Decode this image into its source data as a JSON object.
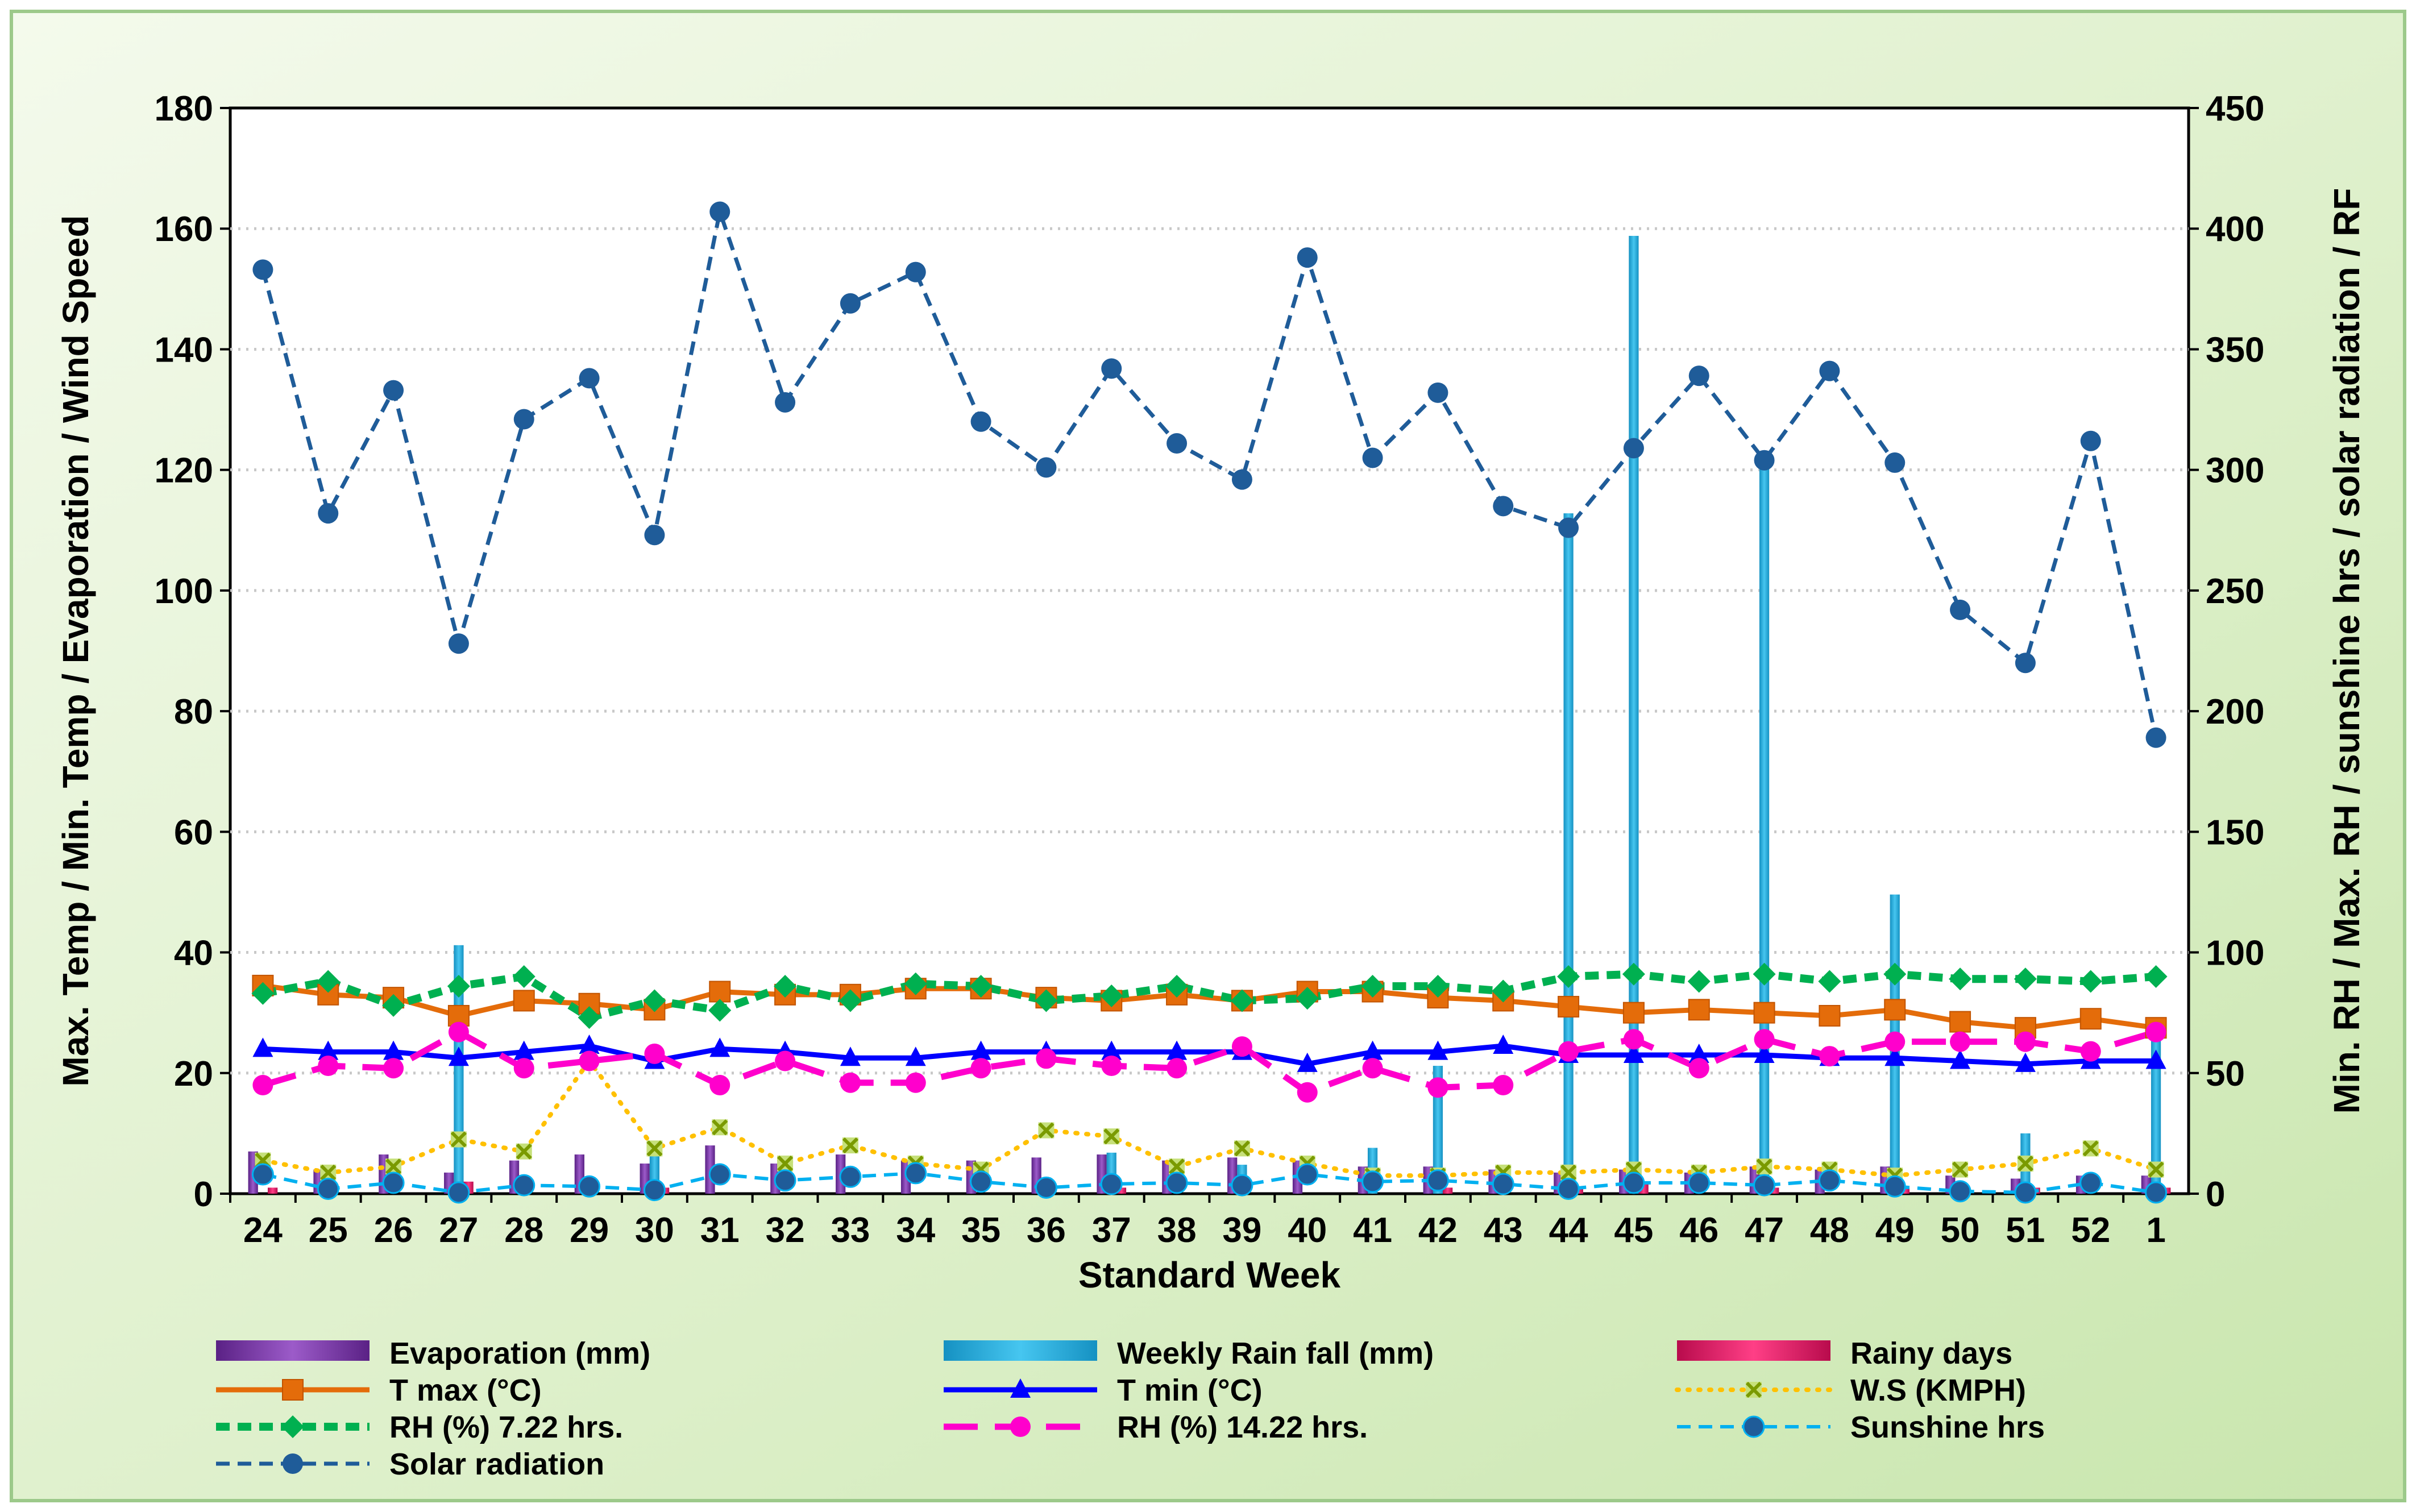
{
  "chart_data": {
    "type": "combo",
    "xlabel": "Standard Week",
    "ylabel_left": "Max. Temp / Min. Temp / Evaporation / Wind  Speed",
    "ylabel_right": "Min. RH / Max. RH / sunshine hrs / solar radiation / RF",
    "ylim_left": [
      0,
      180
    ],
    "ylim_right": [
      0,
      450
    ],
    "yticks_left": [
      "0",
      "20",
      "40",
      "60",
      "80",
      "100",
      "120",
      "140",
      "160",
      "180"
    ],
    "yticks_right": [
      "0",
      "50",
      "100",
      "150",
      "200",
      "250",
      "300",
      "350",
      "400",
      "450"
    ],
    "grid": true,
    "categories": [
      "24",
      "25",
      "26",
      "27",
      "28",
      "29",
      "30",
      "31",
      "32",
      "33",
      "34",
      "35",
      "36",
      "37",
      "38",
      "39",
      "40",
      "41",
      "42",
      "43",
      "44",
      "45",
      "46",
      "47",
      "48",
      "49",
      "50",
      "51",
      "52",
      "1"
    ],
    "series": [
      {
        "name": "Evaporation (mm)",
        "kind": "bar",
        "axis": "left",
        "color": "#7030A0",
        "values": [
          7,
          4,
          6.5,
          3.5,
          5.5,
          6.5,
          5,
          8,
          5,
          6.5,
          5.5,
          5.5,
          6,
          6.5,
          5.5,
          6,
          5.5,
          4.5,
          4.5,
          4,
          3.5,
          4,
          3.5,
          4.5,
          4,
          4.5,
          3,
          2.5,
          3,
          3
        ]
      },
      {
        "name": "Weekly Rain fall (mm)",
        "kind": "bar",
        "axis": "right",
        "color": "#1AA7D8",
        "values": [
          0,
          0,
          0,
          103,
          0,
          0,
          20,
          0,
          0,
          0,
          0,
          0,
          0,
          17,
          0,
          12,
          0,
          19,
          53,
          0,
          282,
          397,
          0,
          302,
          0,
          124,
          0,
          25,
          0,
          68
        ]
      },
      {
        "name": "Rainy days",
        "kind": "bar",
        "axis": "left",
        "color": "#E0115F",
        "values": [
          1,
          0,
          0,
          2,
          0,
          0,
          1,
          0,
          0,
          0,
          0,
          0,
          0,
          1,
          0,
          0,
          0,
          0,
          1,
          0,
          1,
          2,
          0,
          1,
          0,
          1,
          0,
          1,
          0,
          1
        ]
      },
      {
        "name": "T max (°C)",
        "kind": "line",
        "axis": "left",
        "color": "#E46C0A",
        "marker": "square",
        "dash": "solid",
        "values": [
          34.5,
          33,
          32.5,
          29.5,
          32,
          31.5,
          30.5,
          33.5,
          33,
          33,
          34,
          34,
          32.5,
          32,
          33,
          32,
          33.5,
          33.5,
          32.5,
          32,
          31,
          30,
          30.5,
          30,
          29.5,
          30.5,
          28.5,
          27.5,
          29,
          27.5
        ]
      },
      {
        "name": "T min (°C)",
        "kind": "line",
        "axis": "left",
        "color": "#0000FF",
        "marker": "triangle",
        "dash": "solid",
        "values": [
          24,
          23.5,
          23.5,
          22.5,
          23.5,
          24.5,
          22,
          24,
          23.5,
          22.5,
          22.5,
          23.5,
          23.5,
          23.5,
          23.5,
          23.5,
          21.5,
          23.5,
          23.5,
          24.5,
          23,
          23,
          23,
          23,
          22.5,
          22.5,
          22,
          21.5,
          22,
          22
        ]
      },
      {
        "name": "W.S (KMPH)",
        "kind": "line",
        "axis": "left",
        "color": "#FFC000",
        "marker": "x",
        "dash": "dotted",
        "values": [
          5.5,
          3.5,
          4.5,
          9,
          7,
          22,
          7.5,
          11,
          5,
          8,
          5,
          4,
          10.5,
          9.5,
          4.5,
          7.5,
          5,
          3,
          3,
          3.5,
          3.5,
          4,
          3.5,
          4.5,
          4,
          3,
          4,
          5,
          7.5,
          4
        ]
      },
      {
        "name": "RH (%) 7.22 hrs.",
        "kind": "line",
        "axis": "right",
        "color": "#00B050",
        "marker": "diamond",
        "dash": "dash",
        "values": [
          83,
          88,
          78,
          86,
          90,
          73,
          80,
          76,
          86,
          80,
          87,
          86,
          80,
          82,
          86,
          80,
          81,
          86,
          86,
          84,
          90,
          91,
          88,
          91,
          88,
          91,
          89,
          89,
          88,
          90
        ]
      },
      {
        "name": "RH (%) 14.22 hrs.",
        "kind": "line",
        "axis": "right",
        "color": "#FF00CC",
        "marker": "circle",
        "dash": "longdash",
        "values": [
          45,
          53,
          52,
          67,
          52,
          55,
          58,
          45,
          55,
          46,
          46,
          52,
          56,
          53,
          52,
          61,
          42,
          52,
          44,
          45,
          59,
          64,
          52,
          64,
          57,
          63,
          63,
          63,
          59,
          67
        ]
      },
      {
        "name": "Sunshine hrs",
        "kind": "line",
        "axis": "right",
        "color": "#00B0F0",
        "marker": "circle-dark",
        "dash": "dash",
        "values": [
          8,
          2,
          4.5,
          0.5,
          3.5,
          3,
          1.5,
          8,
          5.5,
          7,
          8.5,
          5,
          2.5,
          4,
          4.5,
          3.5,
          8,
          5,
          5.5,
          4,
          2,
          4.5,
          4.5,
          3.5,
          5.5,
          3,
          1,
          0.5,
          4.5,
          0.5
        ]
      },
      {
        "name": "Solar radiation",
        "kind": "line",
        "axis": "right",
        "color": "#1F5C99",
        "marker": "circle",
        "dash": "dash",
        "values": [
          383,
          282,
          333,
          228,
          321,
          338,
          273,
          407,
          328,
          369,
          382,
          320,
          301,
          342,
          311,
          296,
          388,
          305,
          332,
          285,
          276,
          309,
          339,
          304,
          341,
          303,
          242,
          220,
          312,
          189
        ]
      }
    ]
  }
}
